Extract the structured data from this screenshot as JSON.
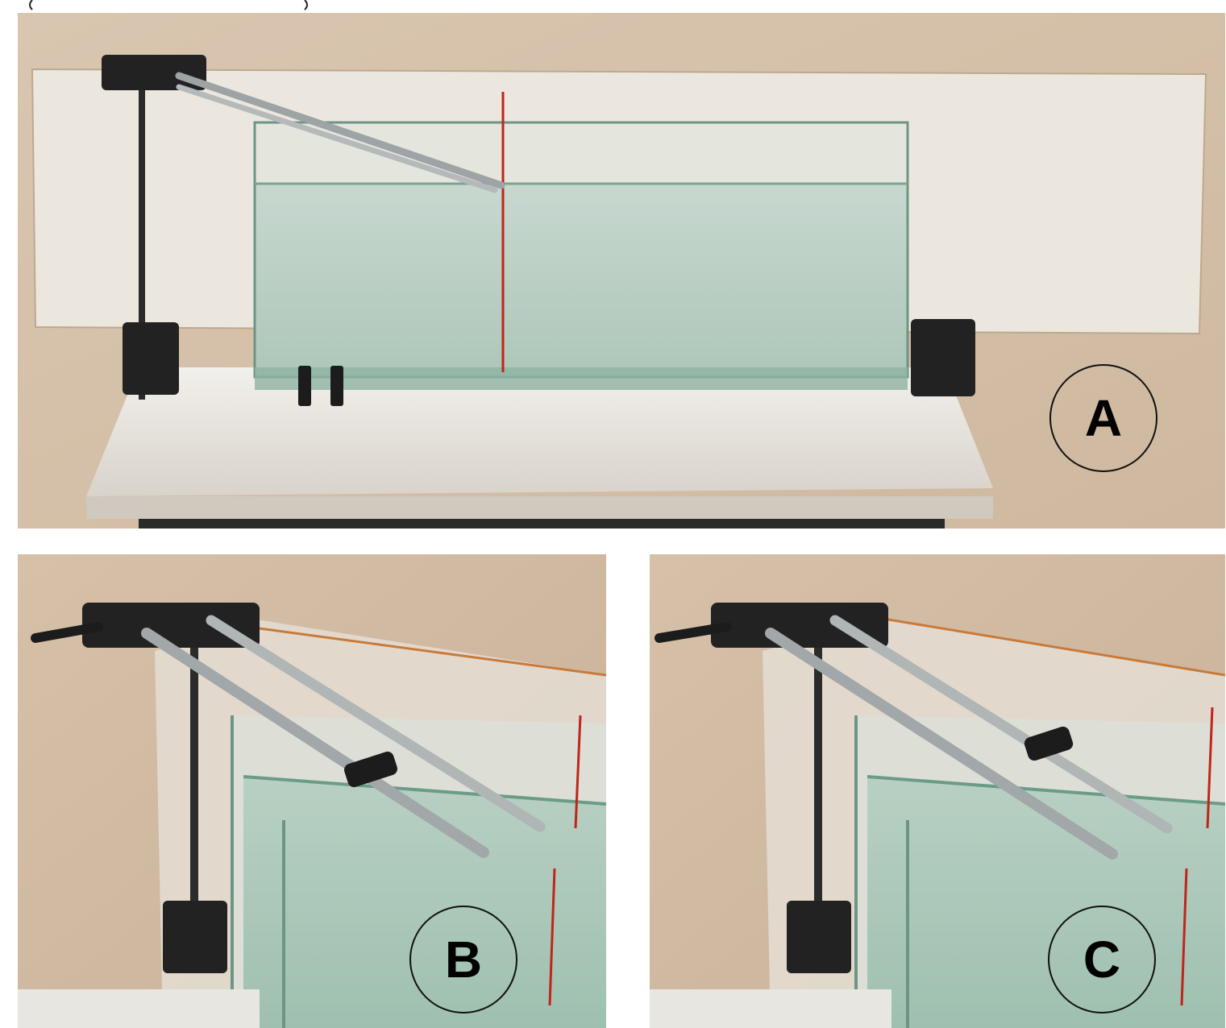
{
  "panels": [
    {
      "id": "A",
      "label": "A"
    },
    {
      "id": "B",
      "label": "B"
    },
    {
      "id": "C",
      "label": "C"
    }
  ],
  "colors": {
    "wall": "#d7c3ad",
    "board": "#ece6dc",
    "table": "#e9e6e0",
    "water": "#b9cdc2",
    "glass_edge": "#5f8f7c",
    "red_line": "#c0251b",
    "rod": "#9ea3a5",
    "clamp": "#222222"
  }
}
